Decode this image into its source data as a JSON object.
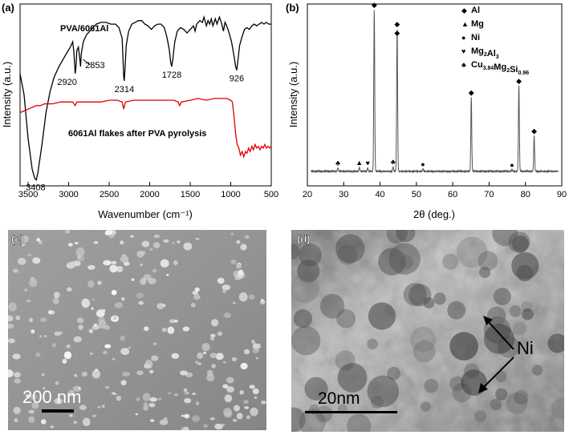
{
  "panels": {
    "a": {
      "label": "(a)"
    },
    "b": {
      "label": "(b)"
    },
    "c": {
      "label": "(c)",
      "scale_bar": "200 nm"
    },
    "d": {
      "label": "(d)",
      "scale_bar": "20nm",
      "annotation": "Ni"
    }
  },
  "colors": {
    "pva_series": "#000000",
    "pyrolysis_series": "#e00000",
    "xrd_series": "#555555",
    "sem_background": "#8a8a8a",
    "tem_background": "#9a9a9a"
  },
  "chart_data": [
    {
      "id": "ftir",
      "type": "line",
      "title": "",
      "xlabel": "Wavenumber (cm⁻¹)",
      "ylabel": "Intensity (a.u.)",
      "xlim": [
        3600,
        500
      ],
      "x_reversed": true,
      "x_ticks": [
        3500,
        3000,
        2500,
        2000,
        1500,
        1000,
        500
      ],
      "x_tick_labels": [
        "3500",
        "3000",
        "2500",
        "2000",
        "1500",
        "1000",
        "500"
      ],
      "ylim": [
        0,
        100
      ],
      "y_ticks_labeled": false,
      "grid": false,
      "series": [
        {
          "name": "PVA/6061Al",
          "color": "#000000",
          "points": [
            [
              3600,
              62
            ],
            [
              3550,
              50
            ],
            [
              3500,
              25
            ],
            [
              3450,
              8
            ],
            [
              3420,
              3
            ],
            [
              3400,
              2
            ],
            [
              3380,
              6
            ],
            [
              3330,
              22
            ],
            [
              3280,
              40
            ],
            [
              3230,
              52
            ],
            [
              3180,
              60
            ],
            [
              3120,
              66
            ],
            [
              3070,
              70
            ],
            [
              3020,
              74
            ],
            [
              2980,
              77
            ],
            [
              2950,
              80
            ],
            [
              2935,
              74
            ],
            [
              2920,
              62
            ],
            [
              2910,
              66
            ],
            [
              2900,
              75
            ],
            [
              2880,
              77
            ],
            [
              2862,
              70
            ],
            [
              2853,
              66
            ],
            [
              2845,
              73
            ],
            [
              2820,
              80
            ],
            [
              2780,
              84
            ],
            [
              2720,
              87
            ],
            [
              2660,
              90
            ],
            [
              2600,
              91
            ],
            [
              2540,
              91
            ],
            [
              2480,
              90
            ],
            [
              2420,
              90
            ],
            [
              2380,
              88
            ],
            [
              2340,
              82
            ],
            [
              2320,
              60
            ],
            [
              2314,
              58
            ],
            [
              2305,
              65
            ],
            [
              2290,
              78
            ],
            [
              2260,
              86
            ],
            [
              2220,
              90
            ],
            [
              2180,
              91
            ],
            [
              2140,
              92
            ],
            [
              2100,
              92
            ],
            [
              2060,
              90
            ],
            [
              2020,
              89
            ],
            [
              1980,
              87
            ],
            [
              1940,
              89
            ],
            [
              1900,
              90
            ],
            [
              1860,
              90
            ],
            [
              1820,
              88
            ],
            [
              1790,
              83
            ],
            [
              1760,
              76
            ],
            [
              1740,
              68
            ],
            [
              1728,
              66
            ],
            [
              1715,
              70
            ],
            [
              1690,
              80
            ],
            [
              1660,
              86
            ],
            [
              1620,
              88
            ],
            [
              1580,
              87
            ],
            [
              1540,
              85
            ],
            [
              1500,
              87
            ],
            [
              1460,
              89
            ],
            [
              1440,
              86
            ],
            [
              1420,
              90
            ],
            [
              1380,
              92
            ],
            [
              1350,
              91
            ],
            [
              1330,
              94
            ],
            [
              1300,
              89
            ],
            [
              1280,
              92
            ],
            [
              1260,
              90
            ],
            [
              1240,
              93
            ],
            [
              1220,
              89
            ],
            [
              1190,
              93
            ],
            [
              1170,
              90
            ],
            [
              1140,
              94
            ],
            [
              1110,
              90
            ],
            [
              1090,
              86
            ],
            [
              1070,
              91
            ],
            [
              1050,
              89
            ],
            [
              1020,
              85
            ],
            [
              990,
              80
            ],
            [
              960,
              72
            ],
            [
              940,
              66
            ],
            [
              926,
              64
            ],
            [
              910,
              70
            ],
            [
              890,
              78
            ],
            [
              860,
              83
            ],
            [
              830,
              87
            ],
            [
              800,
              88
            ],
            [
              770,
              87
            ],
            [
              740,
              89
            ],
            [
              710,
              90
            ],
            [
              680,
              89
            ],
            [
              650,
              90
            ],
            [
              620,
              91
            ],
            [
              590,
              90
            ],
            [
              560,
              91
            ],
            [
              530,
              90
            ],
            [
              500,
              90
            ]
          ],
          "annotations": [
            {
              "x": 3408,
              "label": "3408"
            },
            {
              "x": 2920,
              "label": "2920"
            },
            {
              "x": 2853,
              "label": "2853"
            },
            {
              "x": 2314,
              "label": "2314"
            },
            {
              "x": 1728,
              "label": "1728"
            },
            {
              "x": 926,
              "label": "926"
            }
          ]
        },
        {
          "name": "6061Al flakes after PVA pyrolysis",
          "color": "#e00000",
          "points": [
            [
              3600,
              40
            ],
            [
              3550,
              41
            ],
            [
              3500,
              42
            ],
            [
              3450,
              43
            ],
            [
              3400,
              44
            ],
            [
              3350,
              44
            ],
            [
              3300,
              45
            ],
            [
              3200,
              45
            ],
            [
              3100,
              46
            ],
            [
              3000,
              46
            ],
            [
              2950,
              46
            ],
            [
              2920,
              44
            ],
            [
              2900,
              46
            ],
            [
              2800,
              46
            ],
            [
              2700,
              46
            ],
            [
              2600,
              46
            ],
            [
              2500,
              47
            ],
            [
              2400,
              47
            ],
            [
              2340,
              46
            ],
            [
              2320,
              42
            ],
            [
              2310,
              44
            ],
            [
              2300,
              46
            ],
            [
              2200,
              47
            ],
            [
              2100,
              47
            ],
            [
              2000,
              47
            ],
            [
              1900,
              47
            ],
            [
              1800,
              47
            ],
            [
              1700,
              47
            ],
            [
              1650,
              46
            ],
            [
              1630,
              44
            ],
            [
              1610,
              46
            ],
            [
              1500,
              47
            ],
            [
              1400,
              48
            ],
            [
              1300,
              47
            ],
            [
              1200,
              48
            ],
            [
              1100,
              48
            ],
            [
              1050,
              48
            ],
            [
              1000,
              47
            ],
            [
              980,
              46
            ],
            [
              960,
              38
            ],
            [
              940,
              28
            ],
            [
              920,
              22
            ],
            [
              900,
              20
            ],
            [
              880,
              16
            ],
            [
              860,
              18
            ],
            [
              840,
              15
            ],
            [
              820,
              18
            ],
            [
              800,
              17
            ],
            [
              780,
              20
            ],
            [
              760,
              18
            ],
            [
              740,
              21
            ],
            [
              720,
              19
            ],
            [
              700,
              22
            ],
            [
              680,
              20
            ],
            [
              660,
              21
            ],
            [
              640,
              19
            ],
            [
              620,
              21
            ],
            [
              600,
              20
            ],
            [
              580,
              22
            ],
            [
              560,
              20
            ],
            [
              540,
              21
            ],
            [
              520,
              20
            ],
            [
              500,
              21
            ]
          ]
        }
      ]
    },
    {
      "id": "xrd",
      "type": "line",
      "title": "",
      "xlabel": "2θ (deg.)",
      "ylabel": "Intensity (a.u.)",
      "xlim": [
        20,
        90
      ],
      "x_ticks": [
        20,
        30,
        40,
        50,
        60,
        70,
        80,
        90
      ],
      "x_tick_labels": [
        "20",
        "30",
        "40",
        "50",
        "60",
        "70",
        "80",
        "90"
      ],
      "ylim": [
        0,
        100
      ],
      "y_ticks_labeled": false,
      "grid": false,
      "legend": {
        "placement": "top-right",
        "entries": [
          {
            "symbol": "◆",
            "main": "Al",
            "sub": ""
          },
          {
            "symbol": "▲",
            "main": "Mg",
            "sub": ""
          },
          {
            "symbol": "●",
            "main": "Ni",
            "sub": ""
          },
          {
            "symbol": "♥",
            "main": "Mg",
            "sub": "2",
            "main2": "Al",
            "sub2": "3"
          },
          {
            "symbol": "♣",
            "main": "Cu",
            "sub": "3.84",
            "main2": "Mg",
            "sub2": "2",
            "main3": "Si",
            "sub3": "0.96"
          }
        ]
      },
      "baseline": 2.5,
      "peaks": [
        {
          "x": 28.4,
          "height": 4.5,
          "marker": "♣"
        },
        {
          "x": 34.3,
          "height": 4.8,
          "marker": "▲"
        },
        {
          "x": 36.6,
          "height": 4.5,
          "marker": "♥"
        },
        {
          "x": 38.4,
          "height": 100,
          "marker": "◆"
        },
        {
          "x": 43.6,
          "height": 5.2,
          "marker": "♣"
        },
        {
          "x": 44.7,
          "height": 88,
          "marker": "◆",
          "marker2": "◆"
        },
        {
          "x": 51.8,
          "height": 3.8,
          "marker": "●"
        },
        {
          "x": 65.1,
          "height": 47,
          "marker": "◆"
        },
        {
          "x": 76.3,
          "height": 3.5,
          "marker": "●"
        },
        {
          "x": 78.2,
          "height": 54,
          "marker": "◆"
        },
        {
          "x": 82.4,
          "height": 24,
          "marker": "◆"
        }
      ]
    }
  ]
}
